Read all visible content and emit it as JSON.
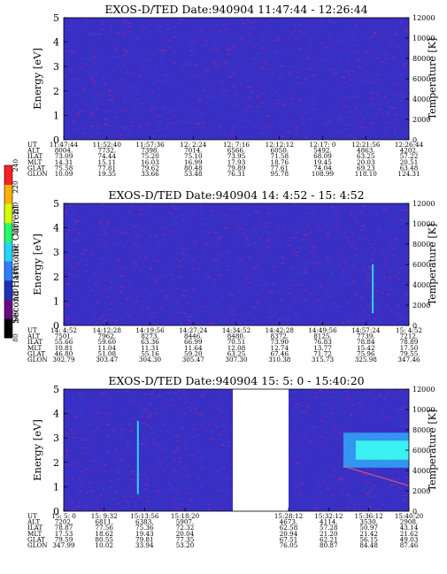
{
  "chart_data": [
    {
      "type": "heatmap",
      "title": "EXOS-D/TED   Date:940904   11:47:44 - 12:26:44",
      "ylabel": "Energy [eV]",
      "y2label": "Temperature [K]",
      "yticks": [
        "0",
        "1",
        "2",
        "3",
        "4",
        "5"
      ],
      "ylim": [
        0,
        5
      ],
      "y2ticks": [
        "0",
        "2000",
        "4000",
        "6000",
        "8000",
        "10000",
        "12000"
      ],
      "y2lim": [
        0,
        12000
      ],
      "ephemeris_labels": [
        "UT",
        "ALT",
        "ILAT",
        "MLT",
        "GLAT",
        "GLON"
      ],
      "ephemeris_columns": [
        [
          "11:47:44",
          "8004.",
          "73.09",
          "14.31",
          "75.58",
          "10.09"
        ],
        [
          "11:52:40",
          "7732.",
          "74.44",
          "15.11",
          "77.81",
          "19.35"
        ],
        [
          "11:57:36",
          "7398.",
          "75.20",
          "16.03",
          "79.62",
          "33.66"
        ],
        [
          "12: 2:24",
          "7014.",
          "75.10",
          "16.99",
          "80.48",
          "53.48"
        ],
        [
          "12: 7:16",
          "6566.",
          "73.95",
          "17.93",
          "79.89",
          "76.31"
        ],
        [
          "12:12:12",
          "6050.",
          "71.58",
          "18.76",
          "77.61",
          "95.78"
        ],
        [
          "12:17: 0",
          "5492.",
          "68.09",
          "19.45",
          "74.04",
          "108.99"
        ],
        [
          "12:21:56",
          "4863.",
          "63.25",
          "20.03",
          "69.23",
          "118.10"
        ],
        [
          "12:26:44",
          "4202.",
          "57.22",
          "20.51",
          "63.48",
          "124.31"
        ]
      ],
      "features": []
    },
    {
      "type": "heatmap",
      "title": "EXOS-D/TED   Date:940904   14: 4:52 - 15: 4:52",
      "ylabel": "Energy [eV]",
      "y2label": "Temperature [K]",
      "yticks": [
        "0",
        "1",
        "2",
        "3",
        "4",
        "5"
      ],
      "ylim": [
        0,
        5
      ],
      "y2ticks": [
        "0",
        "2000",
        "4000",
        "6000",
        "8000",
        "10000",
        "12000"
      ],
      "y2lim": [
        0,
        12000
      ],
      "ephemeris_labels": [
        "UT",
        "ALT",
        "ILAT",
        "MLT",
        "GLAT",
        "GLON"
      ],
      "ephemeris_columns": [
        [
          "14: 4:52",
          "7501.",
          "55.66",
          "10.81",
          "46.80",
          "302.79"
        ],
        [
          "14:12:28",
          "7962.",
          "59.60",
          "11.04",
          "51.08",
          "303.47"
        ],
        [
          "14:19:56",
          "8273.",
          "63.36",
          "11.31",
          "55.16",
          "304.30"
        ],
        [
          "14:27:24",
          "8446.",
          "66.99",
          "11.64",
          "59.20",
          "305.47"
        ],
        [
          "14:34:52",
          "8480.",
          "70.51",
          "12.08",
          "63.25",
          "307.30"
        ],
        [
          "14:42:28",
          "8372.",
          "73.90",
          "12.74",
          "67.46",
          "310.38"
        ],
        [
          "14:49:56",
          "8125.",
          "76.83",
          "13.77",
          "71.72",
          "315.73"
        ],
        [
          "14:57:24",
          "7739.",
          "78.84",
          "15.42",
          "75.96",
          "325.98"
        ],
        [
          "15: 4:52",
          "7212.",
          "78.89",
          "17.50",
          "79.55",
          "347.46"
        ]
      ],
      "features": [
        {
          "kind": "vertical_streak",
          "x_frac": 0.895,
          "energy_from": 0.5,
          "energy_to": 2.5
        }
      ]
    },
    {
      "type": "heatmap",
      "title": "EXOS-D/TED   Date:940904   15: 5: 0 - 15:40:20",
      "ylabel": "Energy [eV]",
      "y2label": "Temperature [K]",
      "yticks": [
        "0",
        "1",
        "2",
        "3",
        "4",
        "5"
      ],
      "ylim": [
        0,
        5
      ],
      "y2ticks": [
        "0",
        "2000",
        "4000",
        "6000",
        "8000",
        "10000",
        "12000"
      ],
      "y2lim": [
        0,
        12000
      ],
      "ephemeris_labels": [
        "UT",
        "ALT",
        "ILAT",
        "MLT",
        "GLAT",
        "GLON"
      ],
      "ephemeris_columns": [
        [
          "15: 5: 0",
          "7202.",
          "78.87",
          "17.53",
          "79.59",
          "347.99"
        ],
        [
          "15: 9:32",
          "6811.",
          "77.56",
          "18.62",
          "80.55",
          "10.02"
        ],
        [
          "15:13:56",
          "6383.",
          "75.36",
          "19.43",
          "79.81",
          "33.94"
        ],
        [
          "15:18:20",
          "5907.",
          "72.32",
          "20.04",
          "77.35",
          "53.20"
        ],
        [
          "15:28:12",
          "4673.",
          "62.58",
          "20.94",
          "67.51",
          "76.05"
        ],
        [
          "15:32:12",
          "4114.",
          "57.28",
          "21.20",
          "62.21",
          "80.87"
        ],
        [
          "15:36:12",
          "3530.",
          "50.97",
          "21.42",
          "56.15",
          "84.48"
        ],
        [
          "15:40:20",
          "2908.",
          "43.14",
          "21.62",
          "49.03",
          "87.46"
        ]
      ],
      "data_gap": {
        "from": "15:18:20",
        "to": "15:28:12"
      },
      "features": [
        {
          "kind": "vertical_streak",
          "x_frac": 0.215,
          "energy_from": 0.7,
          "energy_to": 3.7
        },
        {
          "kind": "enhancement_band",
          "x_from": 0.81,
          "x_to": 1.0,
          "temperature_from": 4800,
          "temperature_to": 7200
        }
      ]
    }
  ],
  "colorbar": {
    "label": "Second Harmonic Current",
    "ticks": [
      "80",
      "100",
      "120",
      "140",
      "160",
      "180",
      "200",
      "220",
      "240"
    ],
    "range": [
      80,
      240
    ],
    "colors": [
      "#000000",
      "#6a0a82",
      "#2030b8",
      "#2f7fff",
      "#22d7ff",
      "#22ff6a",
      "#d6ff00",
      "#ffb000",
      "#ff2020"
    ]
  },
  "colors": {
    "background_fill": "#3a2fc4",
    "speckle_red": "#b82888",
    "speckle_blue": "#2848e0",
    "streak_cyan": "#28e8ff",
    "band_cyan": "#3af0f0",
    "band_blue": "#30b8ff"
  }
}
